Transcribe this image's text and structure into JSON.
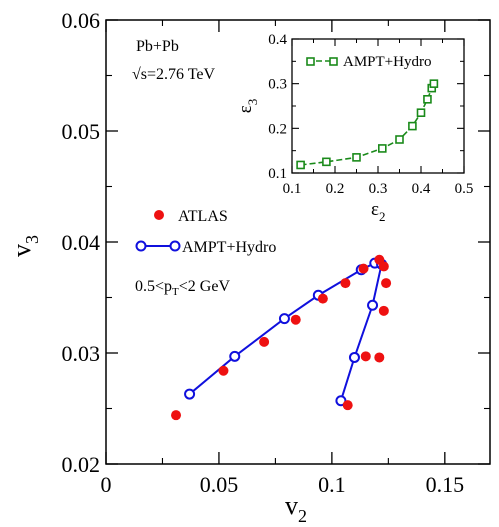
{
  "chart_data": [
    {
      "type": "scatter",
      "xlabel": "v",
      "xlabel_sub": "2",
      "ylabel": "v",
      "ylabel_sub": "3",
      "xlim": [
        0,
        0.17
      ],
      "ylim": [
        0.02,
        0.06
      ],
      "xticks": [
        "0",
        "0.05",
        "0.1",
        "0.15"
      ],
      "xtick_values": [
        0,
        0.05,
        0.1,
        0.15
      ],
      "yticks": [
        "0.02",
        "0.03",
        "0.04",
        "0.05",
        "0.06"
      ],
      "ytick_values": [
        0.02,
        0.03,
        0.04,
        0.05,
        0.06
      ],
      "grid": false,
      "annotations": {
        "system": "Pb+Pb",
        "energy": "√s=2.76 TeV",
        "pt_range_pre": "0.5<p",
        "pt_range_sub": "T",
        "pt_range_post": "<2 GeV"
      },
      "legend_position": "center-left",
      "series": [
        {
          "name": "ATLAS",
          "marker": "filled-circle",
          "color": "#ee1111",
          "x": [
            0.031,
            0.052,
            0.07,
            0.084,
            0.096,
            0.106,
            0.114,
            0.121,
            0.123,
            0.124,
            0.123,
            0.121,
            0.115,
            0.107
          ],
          "y": [
            0.0244,
            0.0284,
            0.031,
            0.033,
            0.0349,
            0.0363,
            0.0376,
            0.0384,
            0.0378,
            0.0363,
            0.0338,
            0.0296,
            0.0297,
            0.0253
          ]
        },
        {
          "name": "AMPT+Hydro",
          "marker": "open-circle",
          "color": "#1010dd",
          "x": [
            0.037,
            0.057,
            0.079,
            0.094,
            0.113,
            0.119,
            0.122,
            0.118,
            0.11,
            0.104
          ],
          "y": [
            0.0263,
            0.0297,
            0.0331,
            0.0352,
            0.0375,
            0.0381,
            0.038,
            0.0343,
            0.0296,
            0.0257
          ]
        }
      ]
    },
    {
      "type": "line",
      "xlabel": "ε",
      "xlabel_sub": "2",
      "ylabel": "ε",
      "ylabel_sub": "3",
      "xlim": [
        0.1,
        0.5
      ],
      "ylim": [
        0.1,
        0.4
      ],
      "xticks": [
        "0.1",
        "0.2",
        "0.3",
        "0.4",
        "0.5"
      ],
      "xtick_values": [
        0.1,
        0.2,
        0.3,
        0.4,
        0.5
      ],
      "yticks": [
        "0.1",
        "0.2",
        "0.3",
        "0.4"
      ],
      "ytick_values": [
        0.1,
        0.2,
        0.3,
        0.4
      ],
      "legend_position": "top",
      "series": [
        {
          "name": "AMPT+Hydro",
          "marker": "open-square",
          "line": "dashed",
          "color": "#1a8a1a",
          "x": [
            0.12,
            0.18,
            0.25,
            0.31,
            0.35,
            0.38,
            0.4,
            0.415,
            0.425,
            0.43
          ],
          "y": [
            0.118,
            0.125,
            0.135,
            0.155,
            0.175,
            0.205,
            0.235,
            0.265,
            0.29,
            0.3
          ]
        }
      ]
    }
  ]
}
